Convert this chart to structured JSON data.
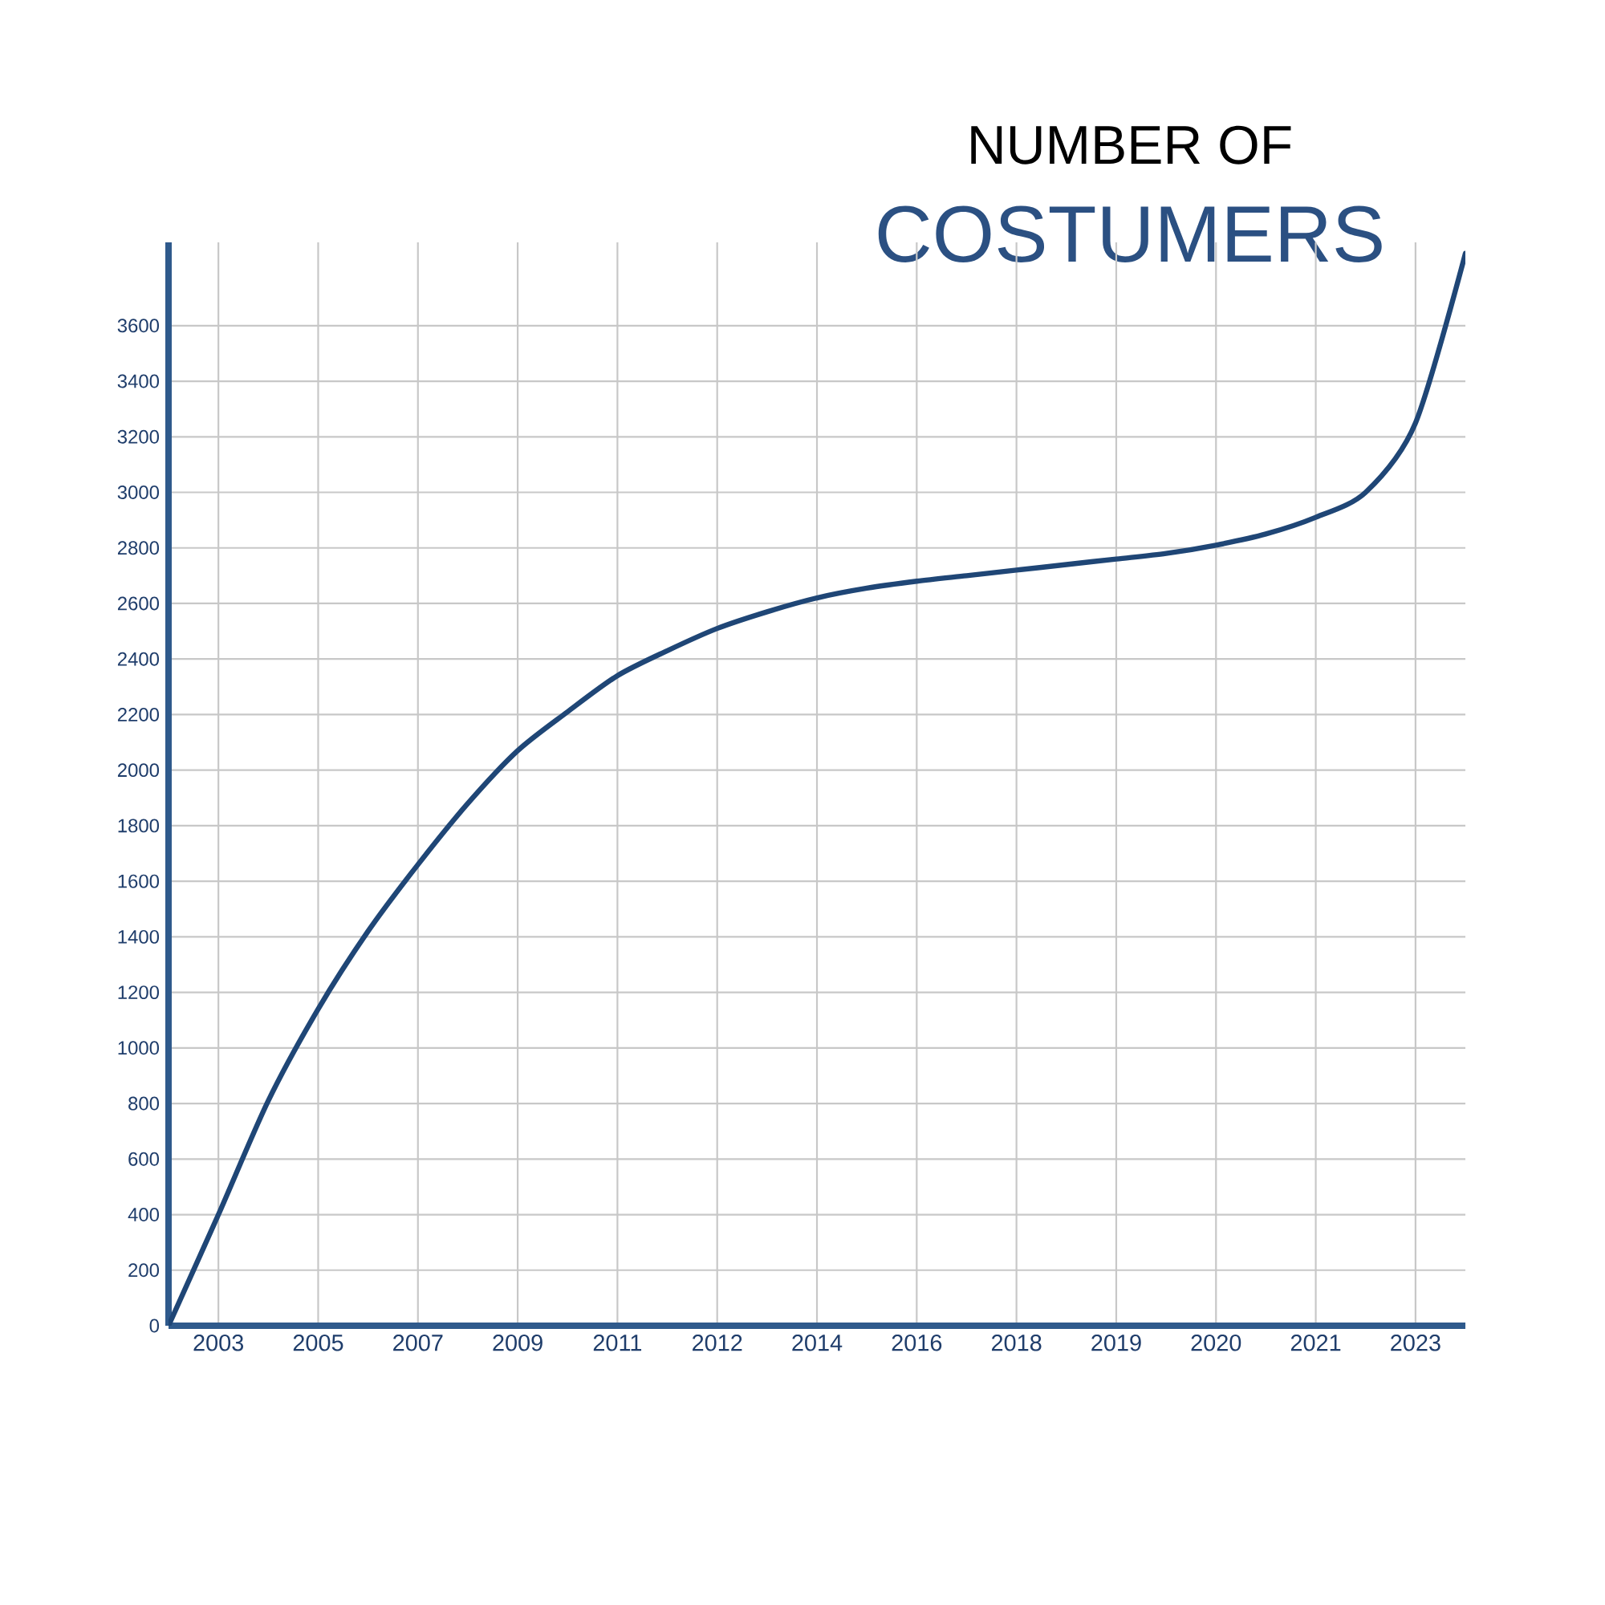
{
  "chart_data": {
    "type": "line",
    "title": "NUMBER OF",
    "subtitle": "COSTUMERS",
    "categories": [
      null,
      "2003",
      null,
      "2005",
      null,
      "2007",
      null,
      "2009",
      null,
      "2011",
      null,
      "2012",
      null,
      "2014",
      null,
      "2016",
      null,
      "2018",
      null,
      "2019",
      null,
      "2020",
      null,
      "2021",
      null,
      "2023",
      null
    ],
    "series": [
      {
        "color": "#1f4676",
        "values": [
          0,
          400,
          810,
          1140,
          1420,
          1660,
          1880,
          2070,
          2210,
          2340,
          2430,
          2510,
          2570,
          2620,
          2655,
          2680,
          2700,
          2720,
          2740,
          2760,
          2780,
          2810,
          2850,
          2910,
          3000,
          3250,
          3860
        ]
      }
    ],
    "ylim": [
      0,
      3900
    ],
    "yticks": [
      0,
      200,
      400,
      600,
      800,
      1000,
      1200,
      1400,
      1600,
      1800,
      2000,
      2200,
      2400,
      2600,
      2800,
      3000,
      3200,
      3400,
      3600
    ],
    "grid": true,
    "line_style": "solid"
  }
}
